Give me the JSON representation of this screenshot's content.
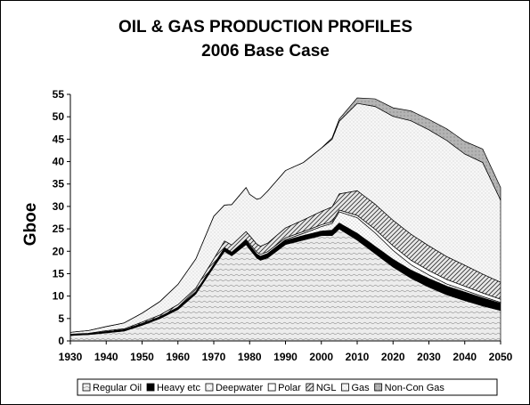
{
  "chart_data": {
    "type": "area",
    "stacked": true,
    "title": "OIL & GAS PRODUCTION PROFILES",
    "subtitle": "2006 Base Case",
    "ylabel": "Gboe",
    "xlabel": "",
    "xlim": [
      1930,
      2050
    ],
    "ylim": [
      0,
      55
    ],
    "x_ticks": [
      "1930",
      "1940",
      "1950",
      "1960",
      "1970",
      "1980",
      "1990",
      "2000",
      "2010",
      "2020",
      "2030",
      "2040",
      "2050"
    ],
    "y_ticks": [
      "0",
      "5",
      "10",
      "15",
      "20",
      "25",
      "30",
      "35",
      "40",
      "45",
      "50",
      "55"
    ],
    "legend_placement": "bottom",
    "x": [
      1930,
      1932,
      1935,
      1940,
      1945,
      1950,
      1955,
      1960,
      1965,
      1970,
      1973,
      1975,
      1979,
      1980,
      1982,
      1983,
      1985,
      1990,
      1995,
      2000,
      2003,
      2005,
      2010,
      2015,
      2020,
      2025,
      2030,
      2035,
      2040,
      2045,
      2050
    ],
    "series": [
      {
        "name": "Regular Oil",
        "values": [
          1.2,
          1.3,
          1.4,
          1.8,
          2.2,
          3.5,
          5.0,
          7.0,
          10.5,
          16.5,
          20.0,
          19.0,
          21.5,
          20.5,
          18.5,
          18.0,
          18.5,
          21.5,
          22.5,
          23.5,
          23.5,
          25.0,
          22.5,
          19.5,
          16.5,
          14.0,
          12.0,
          10.3,
          9.0,
          7.8,
          6.8
        ]
      },
      {
        "name": "Heavy etc",
        "values": [
          0.2,
          0.2,
          0.2,
          0.3,
          0.3,
          0.4,
          0.4,
          0.5,
          0.5,
          0.6,
          0.8,
          0.8,
          0.9,
          0.9,
          0.9,
          0.9,
          0.9,
          0.9,
          1.0,
          1.0,
          1.2,
          1.3,
          1.5,
          1.6,
          1.7,
          1.8,
          1.9,
          1.9,
          1.9,
          1.8,
          1.6
        ]
      },
      {
        "name": "Deepwater",
        "values": [
          0,
          0,
          0,
          0,
          0,
          0,
          0,
          0,
          0,
          0,
          0,
          0,
          0,
          0,
          0,
          0,
          0.1,
          0.2,
          0.5,
          1.0,
          1.5,
          2.5,
          3.5,
          3.0,
          2.0,
          1.2,
          0.8,
          0.5,
          0.4,
          0.3,
          0.2
        ]
      },
      {
        "name": "Polar",
        "values": [
          0,
          0,
          0,
          0,
          0,
          0,
          0,
          0,
          0,
          0,
          0,
          0,
          0.2,
          0.3,
          0.4,
          0.4,
          0.4,
          0.4,
          0.4,
          0.4,
          0.4,
          0.4,
          0.5,
          0.8,
          1.0,
          1.0,
          1.0,
          1.0,
          0.9,
          0.8,
          0.7
        ]
      },
      {
        "name": "NGL",
        "values": [
          0.1,
          0.1,
          0.1,
          0.2,
          0.2,
          0.3,
          0.4,
          0.6,
          0.8,
          1.2,
          1.5,
          1.6,
          1.8,
          1.8,
          1.8,
          1.8,
          1.9,
          2.2,
          2.6,
          3.0,
          3.3,
          3.6,
          5.5,
          5.6,
          5.7,
          5.8,
          5.5,
          5.1,
          4.7,
          4.2,
          3.8
        ]
      },
      {
        "name": "Gas",
        "values": [
          0.4,
          0.5,
          0.6,
          0.9,
          1.3,
          2.0,
          3.0,
          4.5,
          6.5,
          9.5,
          8.0,
          9.0,
          9.8,
          9.2,
          10.0,
          10.7,
          11.6,
          12.8,
          12.8,
          14.1,
          15.1,
          16.2,
          19.5,
          21.8,
          23.2,
          25.3,
          25.9,
          25.9,
          24.8,
          24.9,
          18.3
        ]
      },
      {
        "name": "Non-Con Gas",
        "values": [
          0,
          0,
          0,
          0,
          0,
          0,
          0,
          0,
          0,
          0,
          0,
          0,
          0,
          0,
          0,
          0,
          0,
          0,
          0,
          0,
          0.3,
          0.5,
          1.2,
          1.7,
          1.9,
          2.2,
          2.3,
          2.6,
          2.8,
          3.0,
          2.8
        ]
      }
    ],
    "colors": {
      "Regular Oil": "#ebebeb",
      "Heavy etc": "#000000",
      "Deepwater": "#f2f2f2",
      "Polar": "#ffffff",
      "NGL": "#d4d4d4",
      "Gas": "#f4f4f4",
      "Non-Con Gas": "#a8a8a8"
    }
  }
}
